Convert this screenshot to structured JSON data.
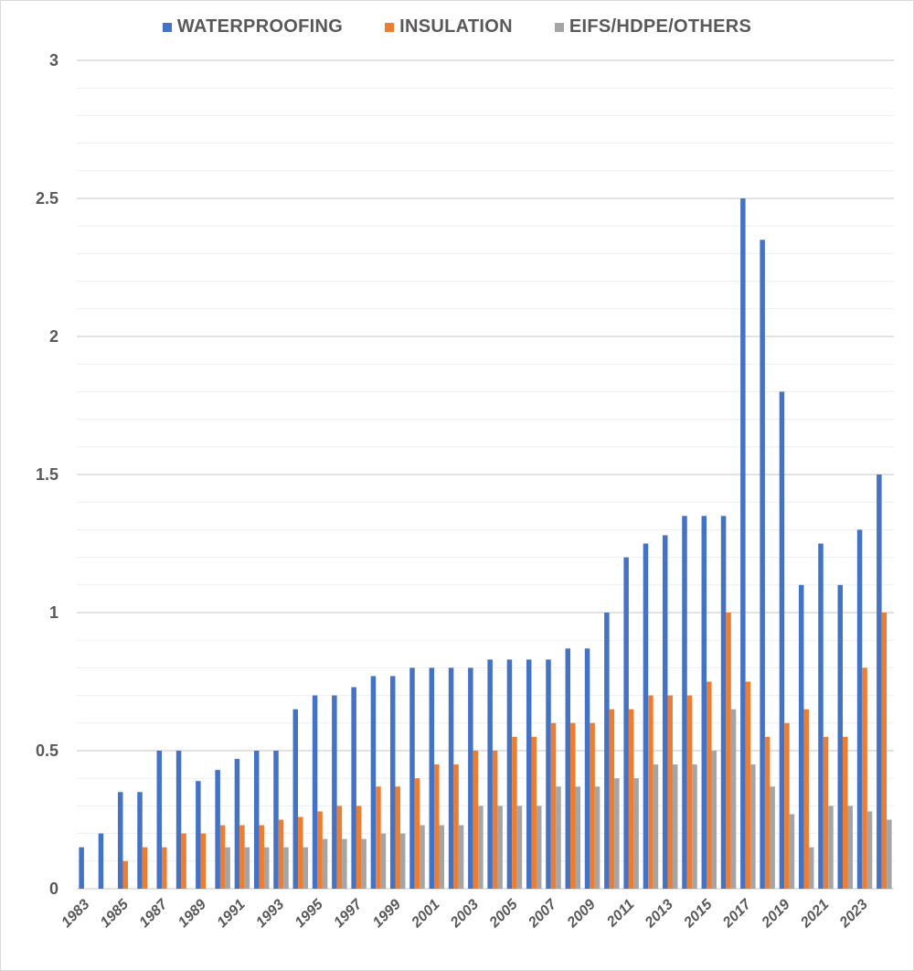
{
  "chart_data": {
    "type": "bar",
    "title": "",
    "xlabel": "",
    "ylabel": "",
    "ylim": [
      0,
      3
    ],
    "yticks": [
      0,
      0.5,
      1,
      1.5,
      2,
      2.5,
      3
    ],
    "ytick_labels": [
      "0",
      "0.5",
      "1",
      "1.5",
      "2",
      "2.5",
      "3"
    ],
    "minor_grid_step": 0.1,
    "grid": true,
    "legend_position": "top",
    "categories": [
      "1983",
      "1984",
      "1985",
      "1986",
      "1987",
      "1988",
      "1989",
      "1990",
      "1991",
      "1992",
      "1993",
      "1994",
      "1995",
      "1996",
      "1997",
      "1998",
      "1999",
      "2000",
      "2001",
      "2002",
      "2003",
      "2004",
      "2005",
      "2006",
      "2007",
      "2008",
      "2009",
      "2010",
      "2011",
      "2012",
      "2013",
      "2014",
      "2015",
      "2016",
      "2017",
      "2018",
      "2019",
      "2020",
      "2021",
      "2022",
      "2023",
      "2024"
    ],
    "xtick_labels_shown": [
      "1983",
      "1985",
      "1987",
      "1989",
      "1991",
      "1993",
      "1995",
      "1997",
      "1999",
      "2001",
      "2003",
      "2005",
      "2007",
      "2009",
      "2011",
      "2013",
      "2015",
      "2017",
      "2019",
      "2021",
      "2023"
    ],
    "series": [
      {
        "name": "WATERPROOFING",
        "color": "#4472c4",
        "values": [
          0.15,
          0.2,
          0.35,
          0.35,
          0.5,
          0.5,
          0.39,
          0.43,
          0.47,
          0.5,
          0.5,
          0.65,
          0.7,
          0.7,
          0.73,
          0.77,
          0.77,
          0.8,
          0.8,
          0.8,
          0.8,
          0.83,
          0.83,
          0.83,
          0.83,
          0.87,
          0.87,
          1.0,
          1.2,
          1.25,
          1.28,
          1.35,
          1.35,
          1.35,
          2.5,
          2.35,
          1.8,
          1.1,
          1.25,
          1.1,
          1.3,
          1.5
        ]
      },
      {
        "name": "INSULATION",
        "color": "#ed7d31",
        "values": [
          0,
          0,
          0.1,
          0.15,
          0.15,
          0.2,
          0.2,
          0.23,
          0.23,
          0.23,
          0.25,
          0.26,
          0.28,
          0.3,
          0.3,
          0.37,
          0.37,
          0.4,
          0.45,
          0.45,
          0.5,
          0.5,
          0.55,
          0.55,
          0.6,
          0.6,
          0.6,
          0.65,
          0.65,
          0.7,
          0.7,
          0.7,
          0.75,
          1.0,
          0.75,
          0.55,
          0.6,
          0.65,
          0.55,
          0.55,
          0.8,
          1.0
        ]
      },
      {
        "name": "EIFS/HDPE/OTHERS",
        "color": "#a5a5a5",
        "values": [
          0,
          0,
          0,
          0,
          0,
          0,
          0,
          0.15,
          0.15,
          0.15,
          0.15,
          0.15,
          0.18,
          0.18,
          0.18,
          0.2,
          0.2,
          0.23,
          0.23,
          0.23,
          0.3,
          0.3,
          0.3,
          0.3,
          0.37,
          0.37,
          0.37,
          0.4,
          0.4,
          0.45,
          0.45,
          0.45,
          0.5,
          0.65,
          0.45,
          0.37,
          0.27,
          0.15,
          0.3,
          0.3,
          0.28,
          0.25
        ]
      }
    ]
  }
}
